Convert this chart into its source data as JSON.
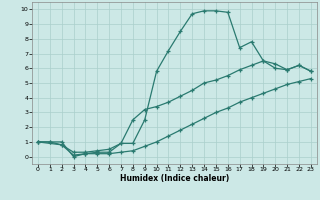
{
  "title": "",
  "xlabel": "Humidex (Indice chaleur)",
  "ylabel": "",
  "background_color": "#cce8e6",
  "grid_color": "#aacfcc",
  "line_color": "#2a7a70",
  "xlim": [
    -0.5,
    23.5
  ],
  "ylim": [
    -0.5,
    10.5
  ],
  "xticks": [
    0,
    1,
    2,
    3,
    4,
    5,
    6,
    7,
    8,
    9,
    10,
    11,
    12,
    13,
    14,
    15,
    16,
    17,
    18,
    19,
    20,
    21,
    22,
    23
  ],
  "yticks": [
    0,
    1,
    2,
    3,
    4,
    5,
    6,
    7,
    8,
    9,
    10
  ],
  "line1_x": [
    0,
    1,
    2,
    3,
    4,
    5,
    6,
    7,
    8,
    9,
    10,
    11,
    12,
    13,
    14,
    15,
    16,
    17,
    18,
    19,
    20,
    21,
    22,
    23
  ],
  "line1_y": [
    1,
    1,
    1,
    0,
    0.2,
    0.3,
    0.3,
    0.9,
    0.9,
    2.5,
    5.8,
    7.2,
    8.5,
    9.7,
    9.9,
    9.9,
    9.8,
    7.4,
    7.8,
    6.5,
    6.0,
    5.9,
    6.2,
    5.8
  ],
  "line2_x": [
    0,
    2,
    3,
    4,
    5,
    6,
    7,
    8,
    9,
    10,
    11,
    12,
    13,
    14,
    15,
    16,
    17,
    18,
    19,
    20,
    21,
    22,
    23
  ],
  "line2_y": [
    1,
    0.8,
    0.3,
    0.3,
    0.4,
    0.5,
    0.9,
    2.5,
    3.2,
    3.4,
    3.7,
    4.1,
    4.5,
    5.0,
    5.2,
    5.5,
    5.9,
    6.2,
    6.5,
    6.3,
    5.9,
    6.2,
    5.8
  ],
  "line3_x": [
    0,
    1,
    2,
    3,
    4,
    5,
    6,
    7,
    8,
    9,
    10,
    11,
    12,
    13,
    14,
    15,
    16,
    17,
    18,
    19,
    20,
    21,
    22,
    23
  ],
  "line3_y": [
    1,
    1,
    0.8,
    0.1,
    0.2,
    0.2,
    0.2,
    0.3,
    0.4,
    0.7,
    1.0,
    1.4,
    1.8,
    2.2,
    2.6,
    3.0,
    3.3,
    3.7,
    4.0,
    4.3,
    4.6,
    4.9,
    5.1,
    5.3
  ]
}
